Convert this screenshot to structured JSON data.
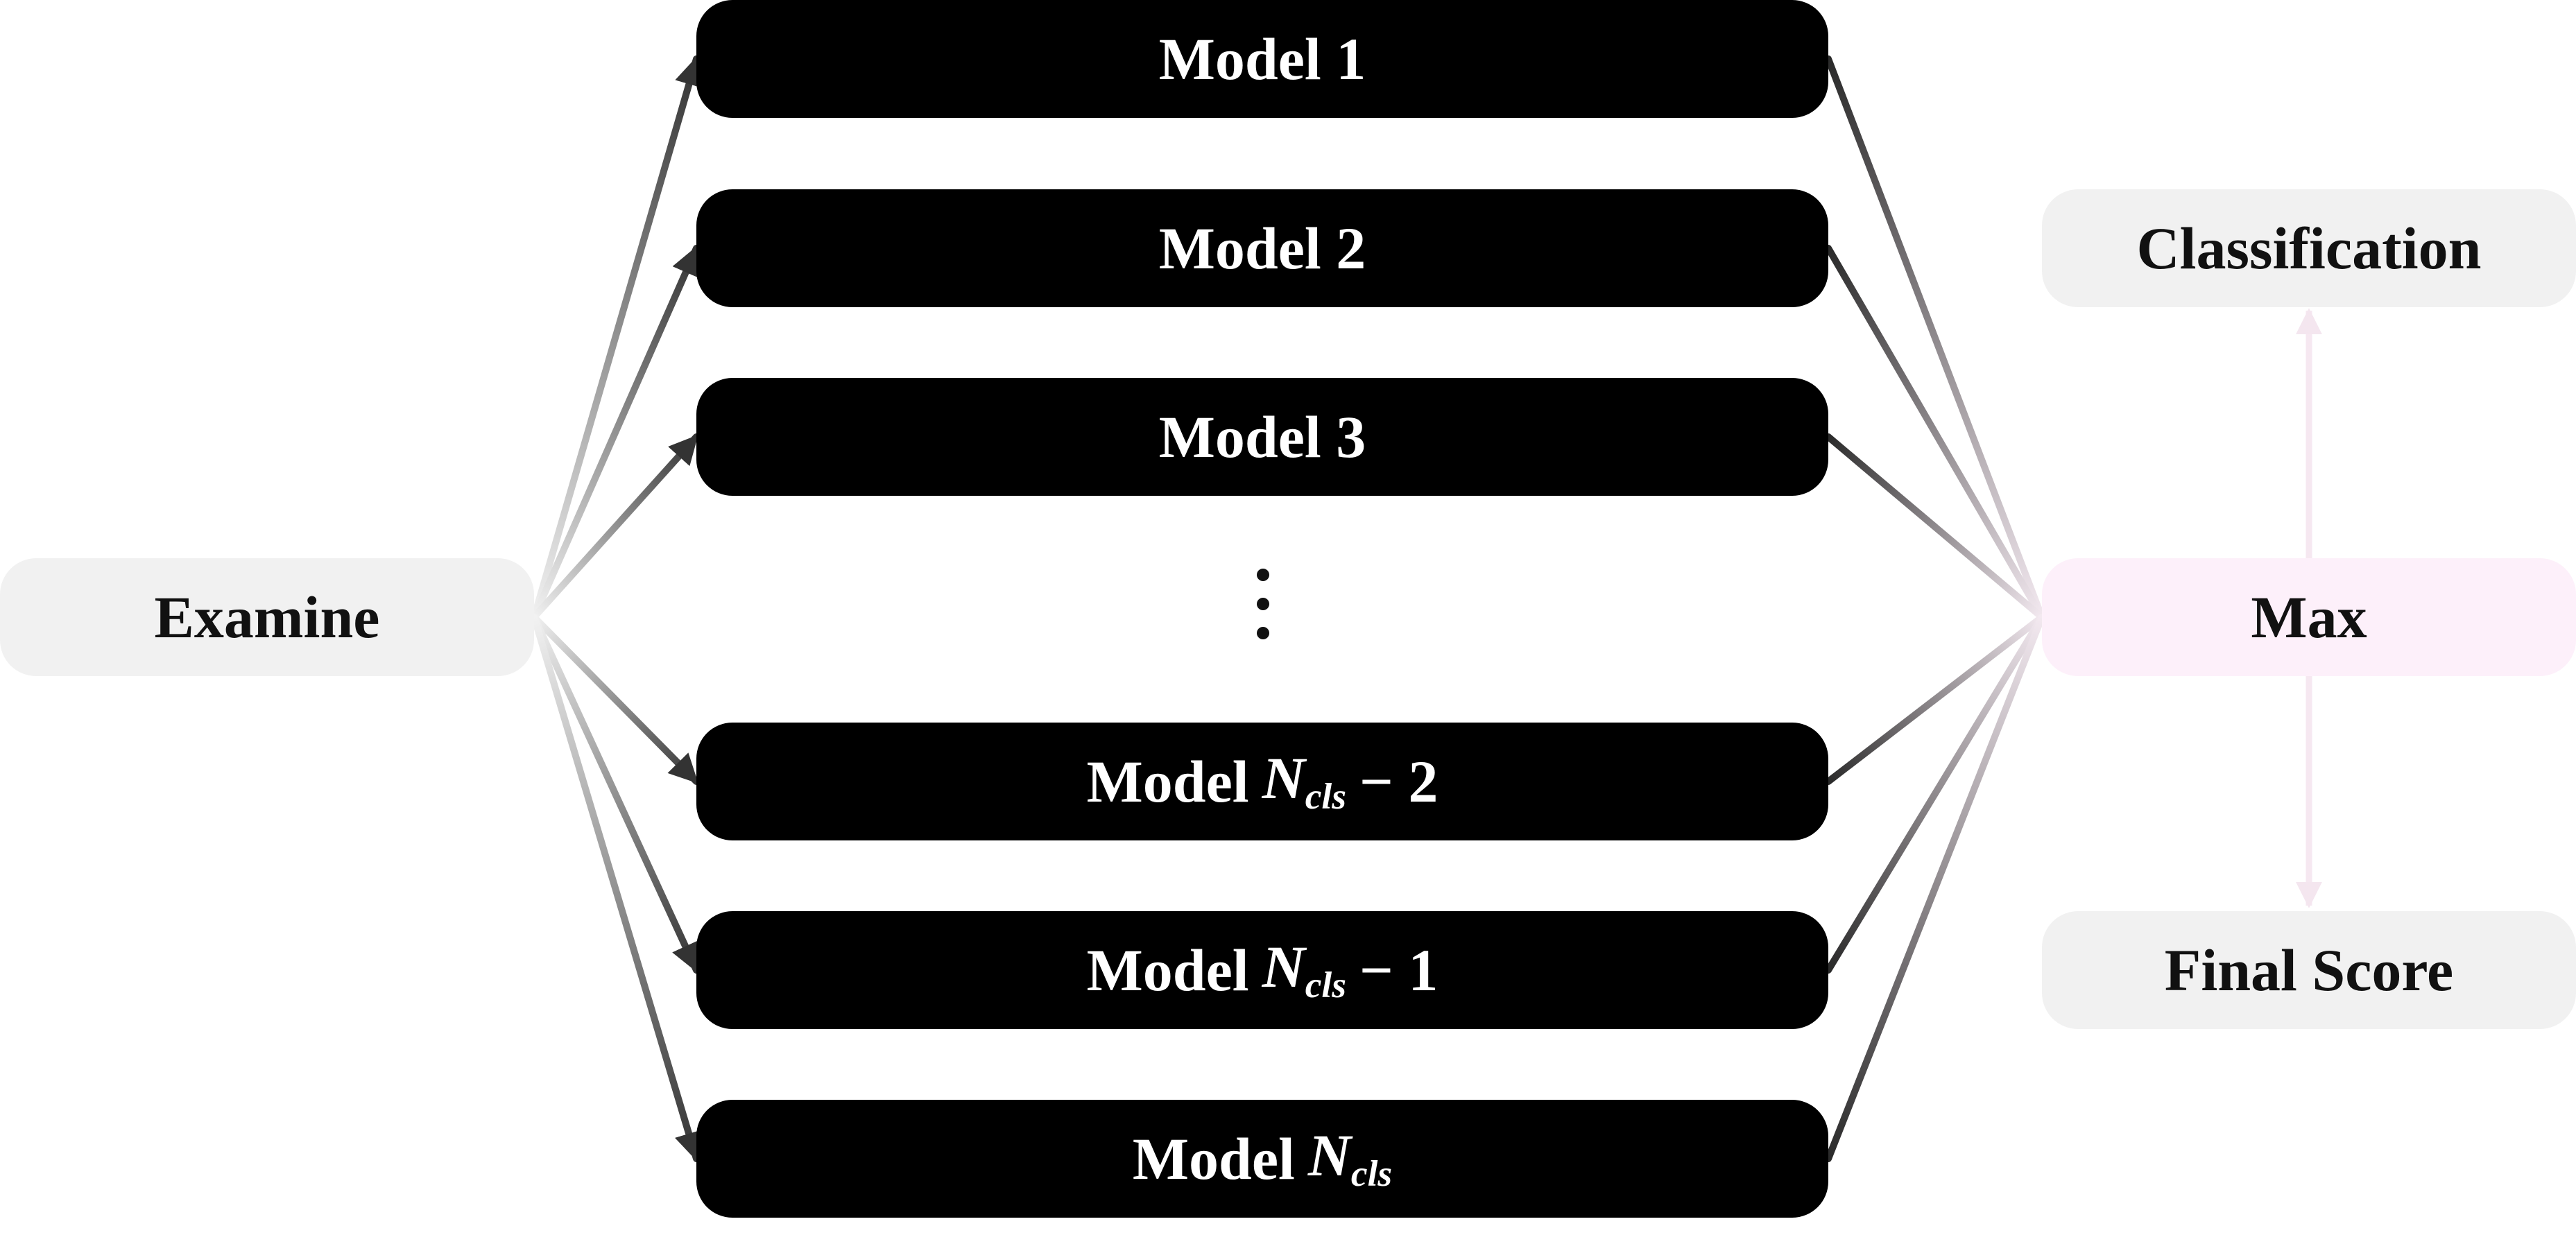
{
  "input": {
    "label": "Examine"
  },
  "models": [
    {
      "label": "Model 1",
      "symbol": "",
      "sub": "",
      "suffix": ""
    },
    {
      "label": "Model 2",
      "symbol": "",
      "sub": "",
      "suffix": ""
    },
    {
      "label": "Model 3",
      "symbol": "",
      "sub": "",
      "suffix": ""
    },
    {
      "label": "Model",
      "symbol": "N",
      "sub": "cls",
      "suffix": "− 2"
    },
    {
      "label": "Model",
      "symbol": "N",
      "sub": "cls",
      "suffix": "− 1"
    },
    {
      "label": "Model",
      "symbol": "N",
      "sub": "cls",
      "suffix": ""
    }
  ],
  "aggregator": {
    "label": "Max"
  },
  "outputs": {
    "classification": {
      "label": "Classification"
    },
    "final_score": {
      "label": "Final Score"
    }
  },
  "colors": {
    "model_fill": "#000000",
    "model_text": "#ffffff",
    "light_node_fill": "#f1f1f1",
    "max_fill": "#fdf0fa",
    "arrow_dark": "#333333"
  }
}
